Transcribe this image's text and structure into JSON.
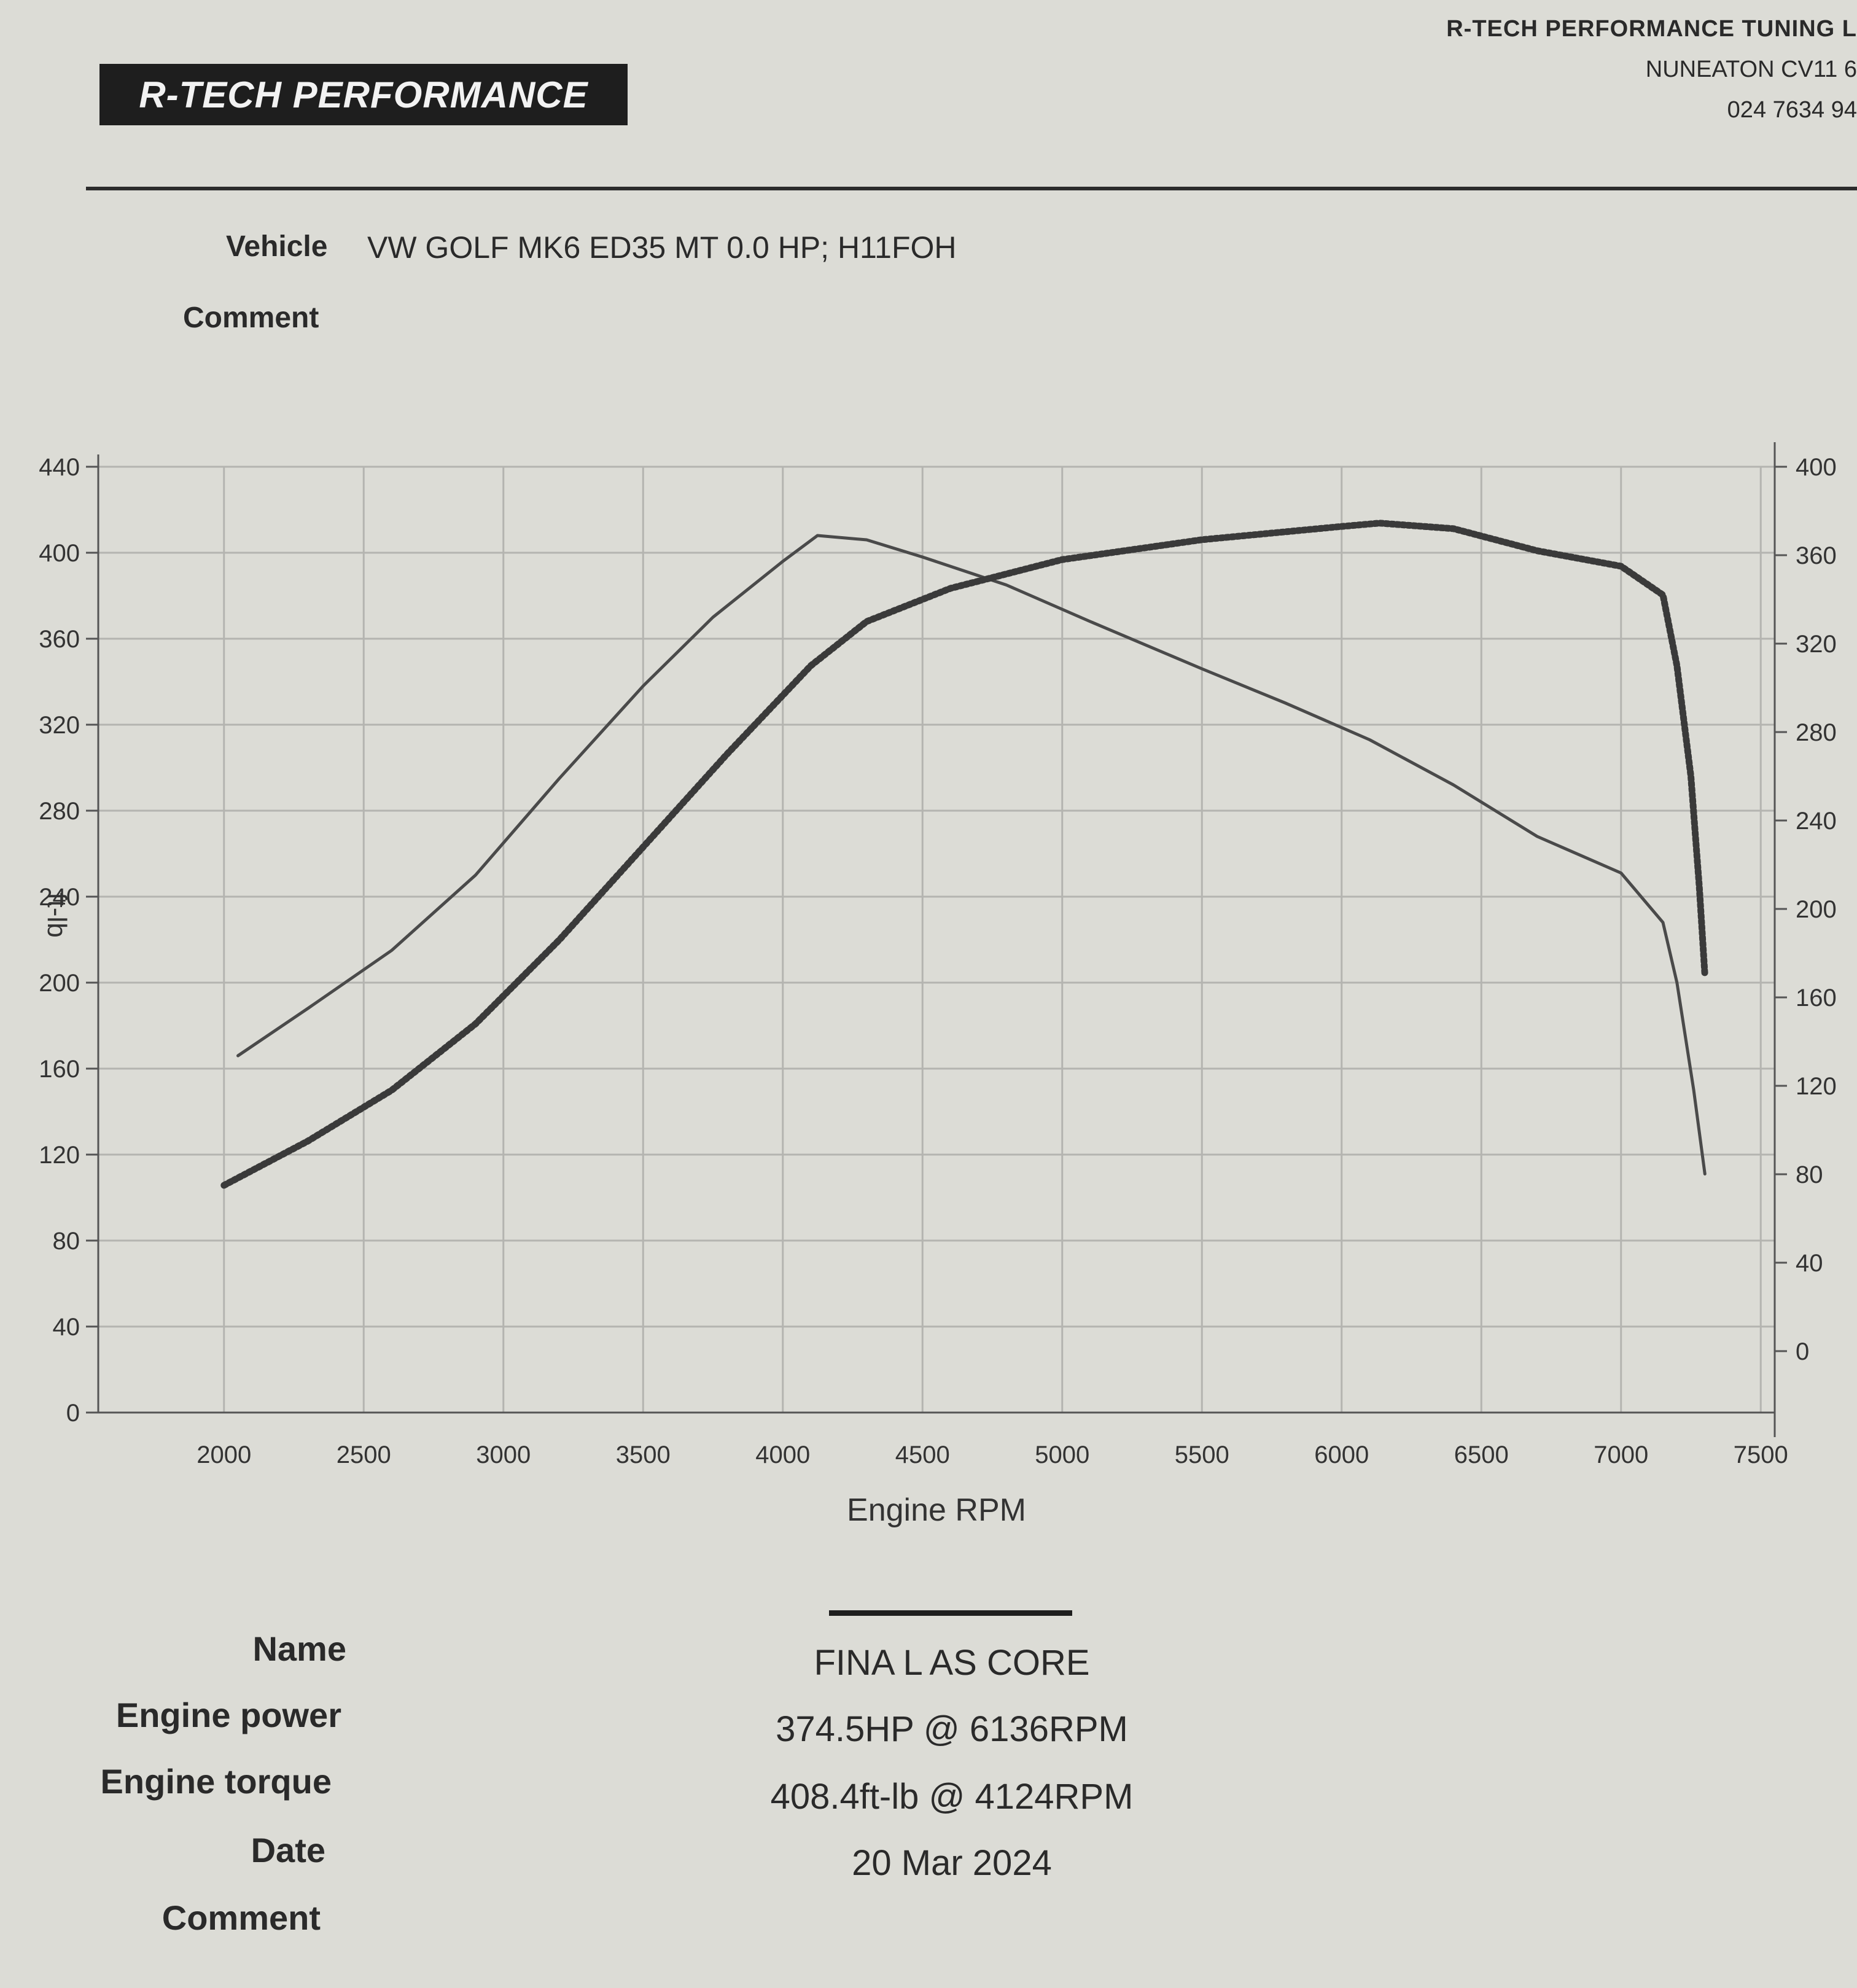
{
  "header": {
    "logo_text": "R-TECH PERFORMANCE",
    "company_name": "R-TECH PERFORMANCE TUNING L",
    "company_town": "NUNEATON CV11 6",
    "company_phone": "024 7634 94"
  },
  "vehicle": {
    "label": "Vehicle",
    "value": "VW GOLF MK6 ED35 MT 0.0 HP; H11FOH",
    "comment_label": "Comment"
  },
  "summary": {
    "name_label": "Name",
    "name_value": "FINA L AS CORE",
    "power_label": "Engine power",
    "power_value": "374.5HP @ 6136RPM",
    "torque_label": "Engine torque",
    "torque_value": "408.4ft-lb @ 4124RPM",
    "date_label": "Date",
    "date_value": "20 Mar 2024",
    "comment_label": "Comment"
  },
  "chart_data": {
    "type": "line",
    "title": "",
    "xlabel": "Engine RPM",
    "ylabel": "ft-lb",
    "y2label": "",
    "xlim": [
      1550,
      7550
    ],
    "ylim": [
      0,
      440
    ],
    "y2lim": [
      0,
      400
    ],
    "xticks": [
      2000,
      2500,
      3000,
      3500,
      4000,
      4500,
      5000,
      5500,
      6000,
      6500,
      7000,
      7500
    ],
    "yticks": [
      0,
      40,
      80,
      120,
      160,
      200,
      240,
      280,
      320,
      360,
      400,
      440
    ],
    "y2ticks": [
      0,
      40,
      80,
      120,
      160,
      200,
      240,
      280,
      320,
      360,
      400
    ],
    "grid": true,
    "series": [
      {
        "axis": "left",
        "style": "solid",
        "color": "#4a4a4a",
        "points": [
          [
            2050,
            166
          ],
          [
            2300,
            188
          ],
          [
            2600,
            215
          ],
          [
            2900,
            250
          ],
          [
            3200,
            295
          ],
          [
            3500,
            338
          ],
          [
            3750,
            370
          ],
          [
            4000,
            396
          ],
          [
            4124,
            408
          ],
          [
            4300,
            406
          ],
          [
            4500,
            398
          ],
          [
            4800,
            385
          ],
          [
            5100,
            368
          ],
          [
            5500,
            346
          ],
          [
            5800,
            330
          ],
          [
            6100,
            313
          ],
          [
            6400,
            292
          ],
          [
            6700,
            268
          ],
          [
            7000,
            251
          ],
          [
            7150,
            228
          ],
          [
            7200,
            200
          ],
          [
            7260,
            150
          ],
          [
            7300,
            111
          ]
        ]
      },
      {
        "axis": "right",
        "style": "dotted",
        "color": "#3a3a3a",
        "points": [
          [
            2000,
            75
          ],
          [
            2300,
            95
          ],
          [
            2600,
            118
          ],
          [
            2900,
            148
          ],
          [
            3200,
            186
          ],
          [
            3500,
            228
          ],
          [
            3800,
            270
          ],
          [
            4100,
            310
          ],
          [
            4300,
            330
          ],
          [
            4600,
            345
          ],
          [
            5000,
            358
          ],
          [
            5500,
            367
          ],
          [
            6000,
            373
          ],
          [
            6136,
            374.5
          ],
          [
            6400,
            372
          ],
          [
            6700,
            362
          ],
          [
            7000,
            355
          ],
          [
            7150,
            342
          ],
          [
            7200,
            310
          ],
          [
            7250,
            260
          ],
          [
            7280,
            210
          ],
          [
            7300,
            170
          ]
        ]
      }
    ]
  }
}
